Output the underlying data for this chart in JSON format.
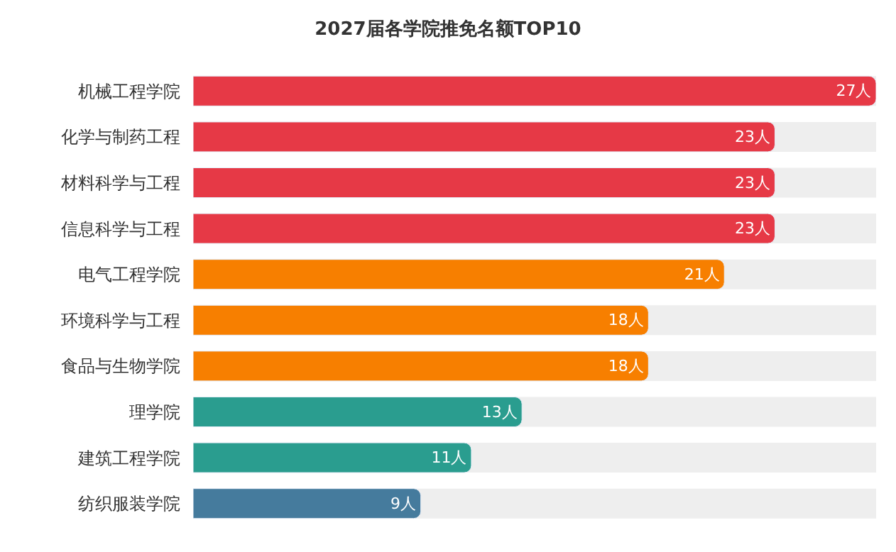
{
  "chart_data": {
    "type": "bar",
    "orientation": "horizontal",
    "title": "2027届各学院推免名额TOP10",
    "categories": [
      "机械工程学院",
      "化学与制药工程",
      "材料科学与工程",
      "信息科学与工程",
      "电气工程学院",
      "环境科学与工程",
      "食品与生物学院",
      "理学院",
      "建筑工程学院",
      "纺织服装学院"
    ],
    "values": [
      27,
      23,
      23,
      23,
      21,
      18,
      18,
      13,
      11,
      9
    ],
    "value_labels": [
      "27人",
      "23人",
      "23人",
      "23人",
      "21人",
      "18人",
      "18人",
      "13人",
      "11人",
      "9人"
    ],
    "colors": [
      "#e63946",
      "#e63946",
      "#e63946",
      "#e63946",
      "#f77f00",
      "#f77f00",
      "#f77f00",
      "#2a9d8f",
      "#2a9d8f",
      "#457b9d"
    ],
    "grid": false,
    "legend": false
  }
}
